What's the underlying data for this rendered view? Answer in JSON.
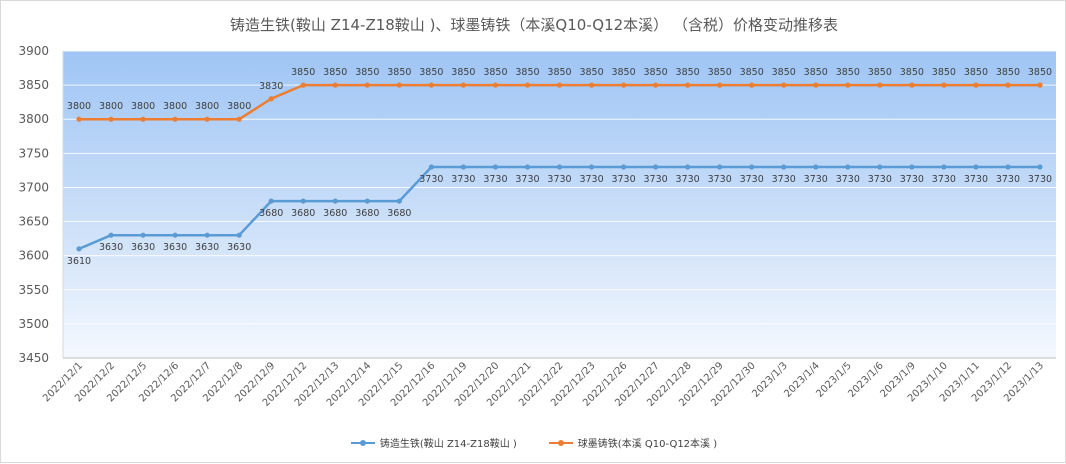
{
  "chart_data": {
    "type": "line",
    "title": "铸造生铁(鞍山 Z14-Z18鞍山 )、球墨铸铁（本溪Q10-Q12本溪） （含税）价格变动推移表",
    "categories": [
      "2022/12/1",
      "2022/12/2",
      "2022/12/5",
      "2022/12/6",
      "2022/12/7",
      "2022/12/8",
      "2022/12/9",
      "2022/12/12",
      "2022/12/13",
      "2022/12/14",
      "2022/12/15",
      "2022/12/16",
      "2022/12/19",
      "2022/12/20",
      "2022/12/21",
      "2022/12/22",
      "2022/12/23",
      "2022/12/26",
      "2022/12/27",
      "2022/12/28",
      "2022/12/29",
      "2022/12/30",
      "2023/1/3",
      "2023/1/4",
      "2023/1/5",
      "2023/1/6",
      "2023/1/9",
      "2023/1/10",
      "2023/1/11",
      "2023/1/12",
      "2023/1/13"
    ],
    "series": [
      {
        "name": "铸造生铁(鞍山 Z14-Z18鞍山 )",
        "color": "#5b9bd5",
        "label_position": "below",
        "values": [
          3610,
          3630,
          3630,
          3630,
          3630,
          3630,
          3680,
          3680,
          3680,
          3680,
          3680,
          3730,
          3730,
          3730,
          3730,
          3730,
          3730,
          3730,
          3730,
          3730,
          3730,
          3730,
          3730,
          3730,
          3730,
          3730,
          3730,
          3730,
          3730,
          3730,
          3730
        ]
      },
      {
        "name": "球墨铸铁(本溪 Q10-Q12本溪 )",
        "color": "#ed7d31",
        "label_position": "above",
        "values": [
          3800,
          3800,
          3800,
          3800,
          3800,
          3800,
          3830,
          3850,
          3850,
          3850,
          3850,
          3850,
          3850,
          3850,
          3850,
          3850,
          3850,
          3850,
          3850,
          3850,
          3850,
          3850,
          3850,
          3850,
          3850,
          3850,
          3850,
          3850,
          3850,
          3850,
          3850
        ]
      }
    ],
    "xlabel": "",
    "ylabel": "",
    "ylim": [
      3450,
      3900
    ],
    "yticks": [
      3450,
      3500,
      3550,
      3600,
      3650,
      3700,
      3750,
      3800,
      3850,
      3900
    ],
    "grid": true,
    "legend_position": "bottom",
    "plot_background": "gradient blue to white"
  }
}
